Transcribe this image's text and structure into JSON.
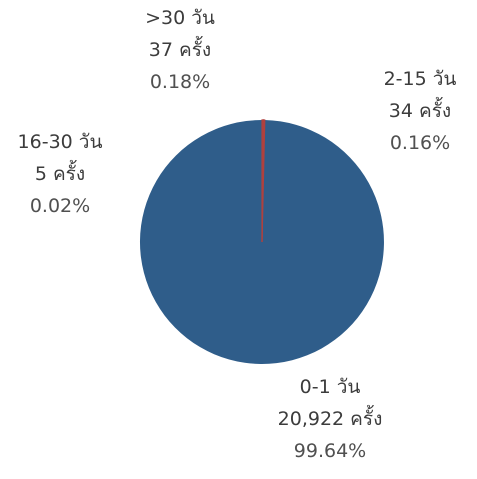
{
  "chart_data": {
    "type": "pie",
    "categories": [
      "0-1 วัน",
      "2-15 วัน",
      "16-30 วัน",
      ">30 วัน"
    ],
    "values": [
      20922,
      34,
      5,
      37
    ],
    "percent_labels": [
      "99.64%",
      "0.16%",
      "0.02%",
      "0.18%"
    ],
    "count_labels": [
      "20,922 ครั้ง",
      "34 ครั้ง",
      "5 ครั้ง",
      "37 ครั้ง"
    ],
    "colors": [
      "#2f5d8a",
      "#b0413e",
      "#b0413e",
      "#b0413e"
    ],
    "title": "",
    "legend": "none"
  }
}
